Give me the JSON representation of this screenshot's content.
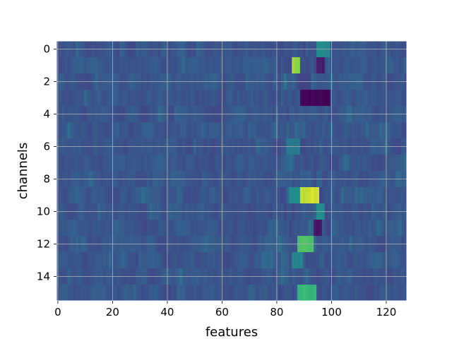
{
  "chart_data": {
    "type": "heatmap",
    "title": "",
    "xlabel": "features",
    "ylabel": "channels",
    "colormap": "viridis",
    "grid": true,
    "rows": 16,
    "cols": 128,
    "xlim": [
      -0.5,
      127.5
    ],
    "ylim": [
      15.5,
      -0.5
    ],
    "x_ticks": [
      0,
      20,
      40,
      60,
      80,
      100,
      120
    ],
    "y_ticks": [
      0,
      2,
      4,
      6,
      8,
      10,
      12,
      14
    ],
    "x_tick_labels": [
      "0",
      "20",
      "40",
      "60",
      "80",
      "100",
      "120"
    ],
    "y_tick_labels": [
      "0",
      "2",
      "4",
      "6",
      "8",
      "10",
      "12",
      "14"
    ],
    "value_range": [
      0,
      1
    ],
    "baseline_level": 0.33,
    "hotspots": [
      {
        "row": 0,
        "cols": [
          95,
          99
        ],
        "value": 0.6
      },
      {
        "row": 1,
        "cols": [
          86,
          88
        ],
        "value": 0.88
      },
      {
        "row": 1,
        "cols": [
          95,
          97
        ],
        "value": 0.1
      },
      {
        "row": 2,
        "cols": [
          88,
          92
        ],
        "value": 0.25
      },
      {
        "row": 3,
        "cols": [
          89,
          99
        ],
        "value": 0.02
      },
      {
        "row": 6,
        "cols": [
          84,
          88
        ],
        "value": 0.5
      },
      {
        "row": 9,
        "cols": [
          89,
          95
        ],
        "value": 0.95
      },
      {
        "row": 9,
        "cols": [
          85,
          88
        ],
        "value": 0.62
      },
      {
        "row": 10,
        "cols": [
          95,
          97
        ],
        "value": 0.62
      },
      {
        "row": 11,
        "cols": [
          94,
          96
        ],
        "value": 0.08
      },
      {
        "row": 12,
        "cols": [
          88,
          93
        ],
        "value": 0.78
      },
      {
        "row": 13,
        "cols": [
          86,
          89
        ],
        "value": 0.55
      },
      {
        "row": 15,
        "cols": [
          88,
          94
        ],
        "value": 0.75
      }
    ]
  }
}
